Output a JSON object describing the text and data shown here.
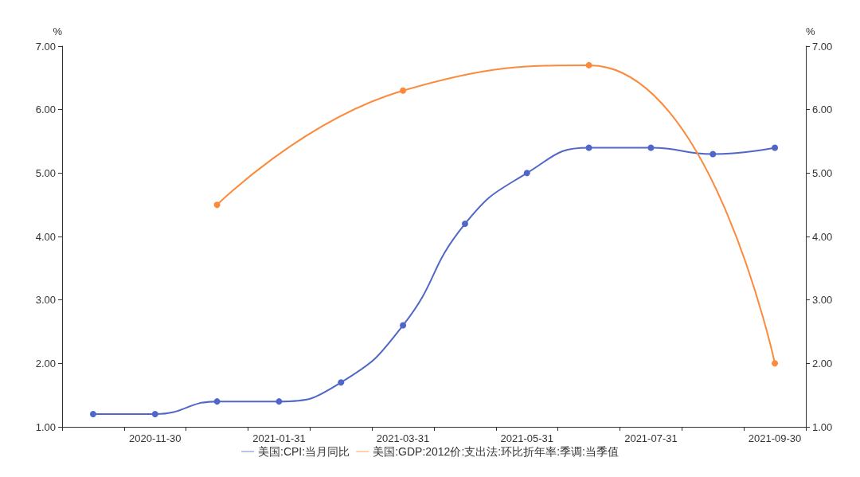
{
  "chart_data": {
    "type": "line",
    "ylabel": "%",
    "y2label": "%",
    "categories": [
      null,
      "2020-11-30",
      null,
      "2021-01-31",
      null,
      "2021-03-31",
      null,
      "2021-05-31",
      null,
      "2021-07-31",
      null,
      "2021-09-30"
    ],
    "series": [
      {
        "name": "美国:CPI:当月同比",
        "color": "#5066c8",
        "values": [
          1.2,
          1.2,
          1.4,
          1.4,
          1.7,
          2.6,
          4.2,
          5.0,
          5.4,
          5.4,
          5.3,
          5.4
        ]
      },
      {
        "name": "美国:GDP:2012价:支出法:环比折年率:季调:当季值",
        "color": "#fb8a3c",
        "axis": "y2",
        "values": [
          null,
          null,
          4.5,
          null,
          null,
          6.3,
          null,
          null,
          6.7,
          null,
          null,
          2.0
        ]
      }
    ],
    "ylim": [
      1,
      7
    ],
    "yticks": [
      {
        "value": 1,
        "label": "1.00"
      },
      {
        "value": 2,
        "label": "2.00"
      },
      {
        "value": 3,
        "label": "3.00"
      },
      {
        "value": 4,
        "label": "4.00"
      },
      {
        "value": 5,
        "label": "5.00"
      },
      {
        "value": 6,
        "label": "6.00"
      },
      {
        "value": 7,
        "label": "7.00"
      }
    ],
    "y2lim": [
      1,
      7
    ],
    "y2ticks": [
      {
        "value": 1,
        "label": "1.00"
      },
      {
        "value": 2,
        "label": "2.00"
      },
      {
        "value": 3,
        "label": "3.00"
      },
      {
        "value": 4,
        "label": "4.00"
      },
      {
        "value": 5,
        "label": "5.00"
      },
      {
        "value": 6,
        "label": "6.00"
      },
      {
        "value": 7,
        "label": "7.00"
      }
    ],
    "grid": false,
    "legend": "bottom",
    "marker": "circle",
    "line_style": "solid"
  }
}
